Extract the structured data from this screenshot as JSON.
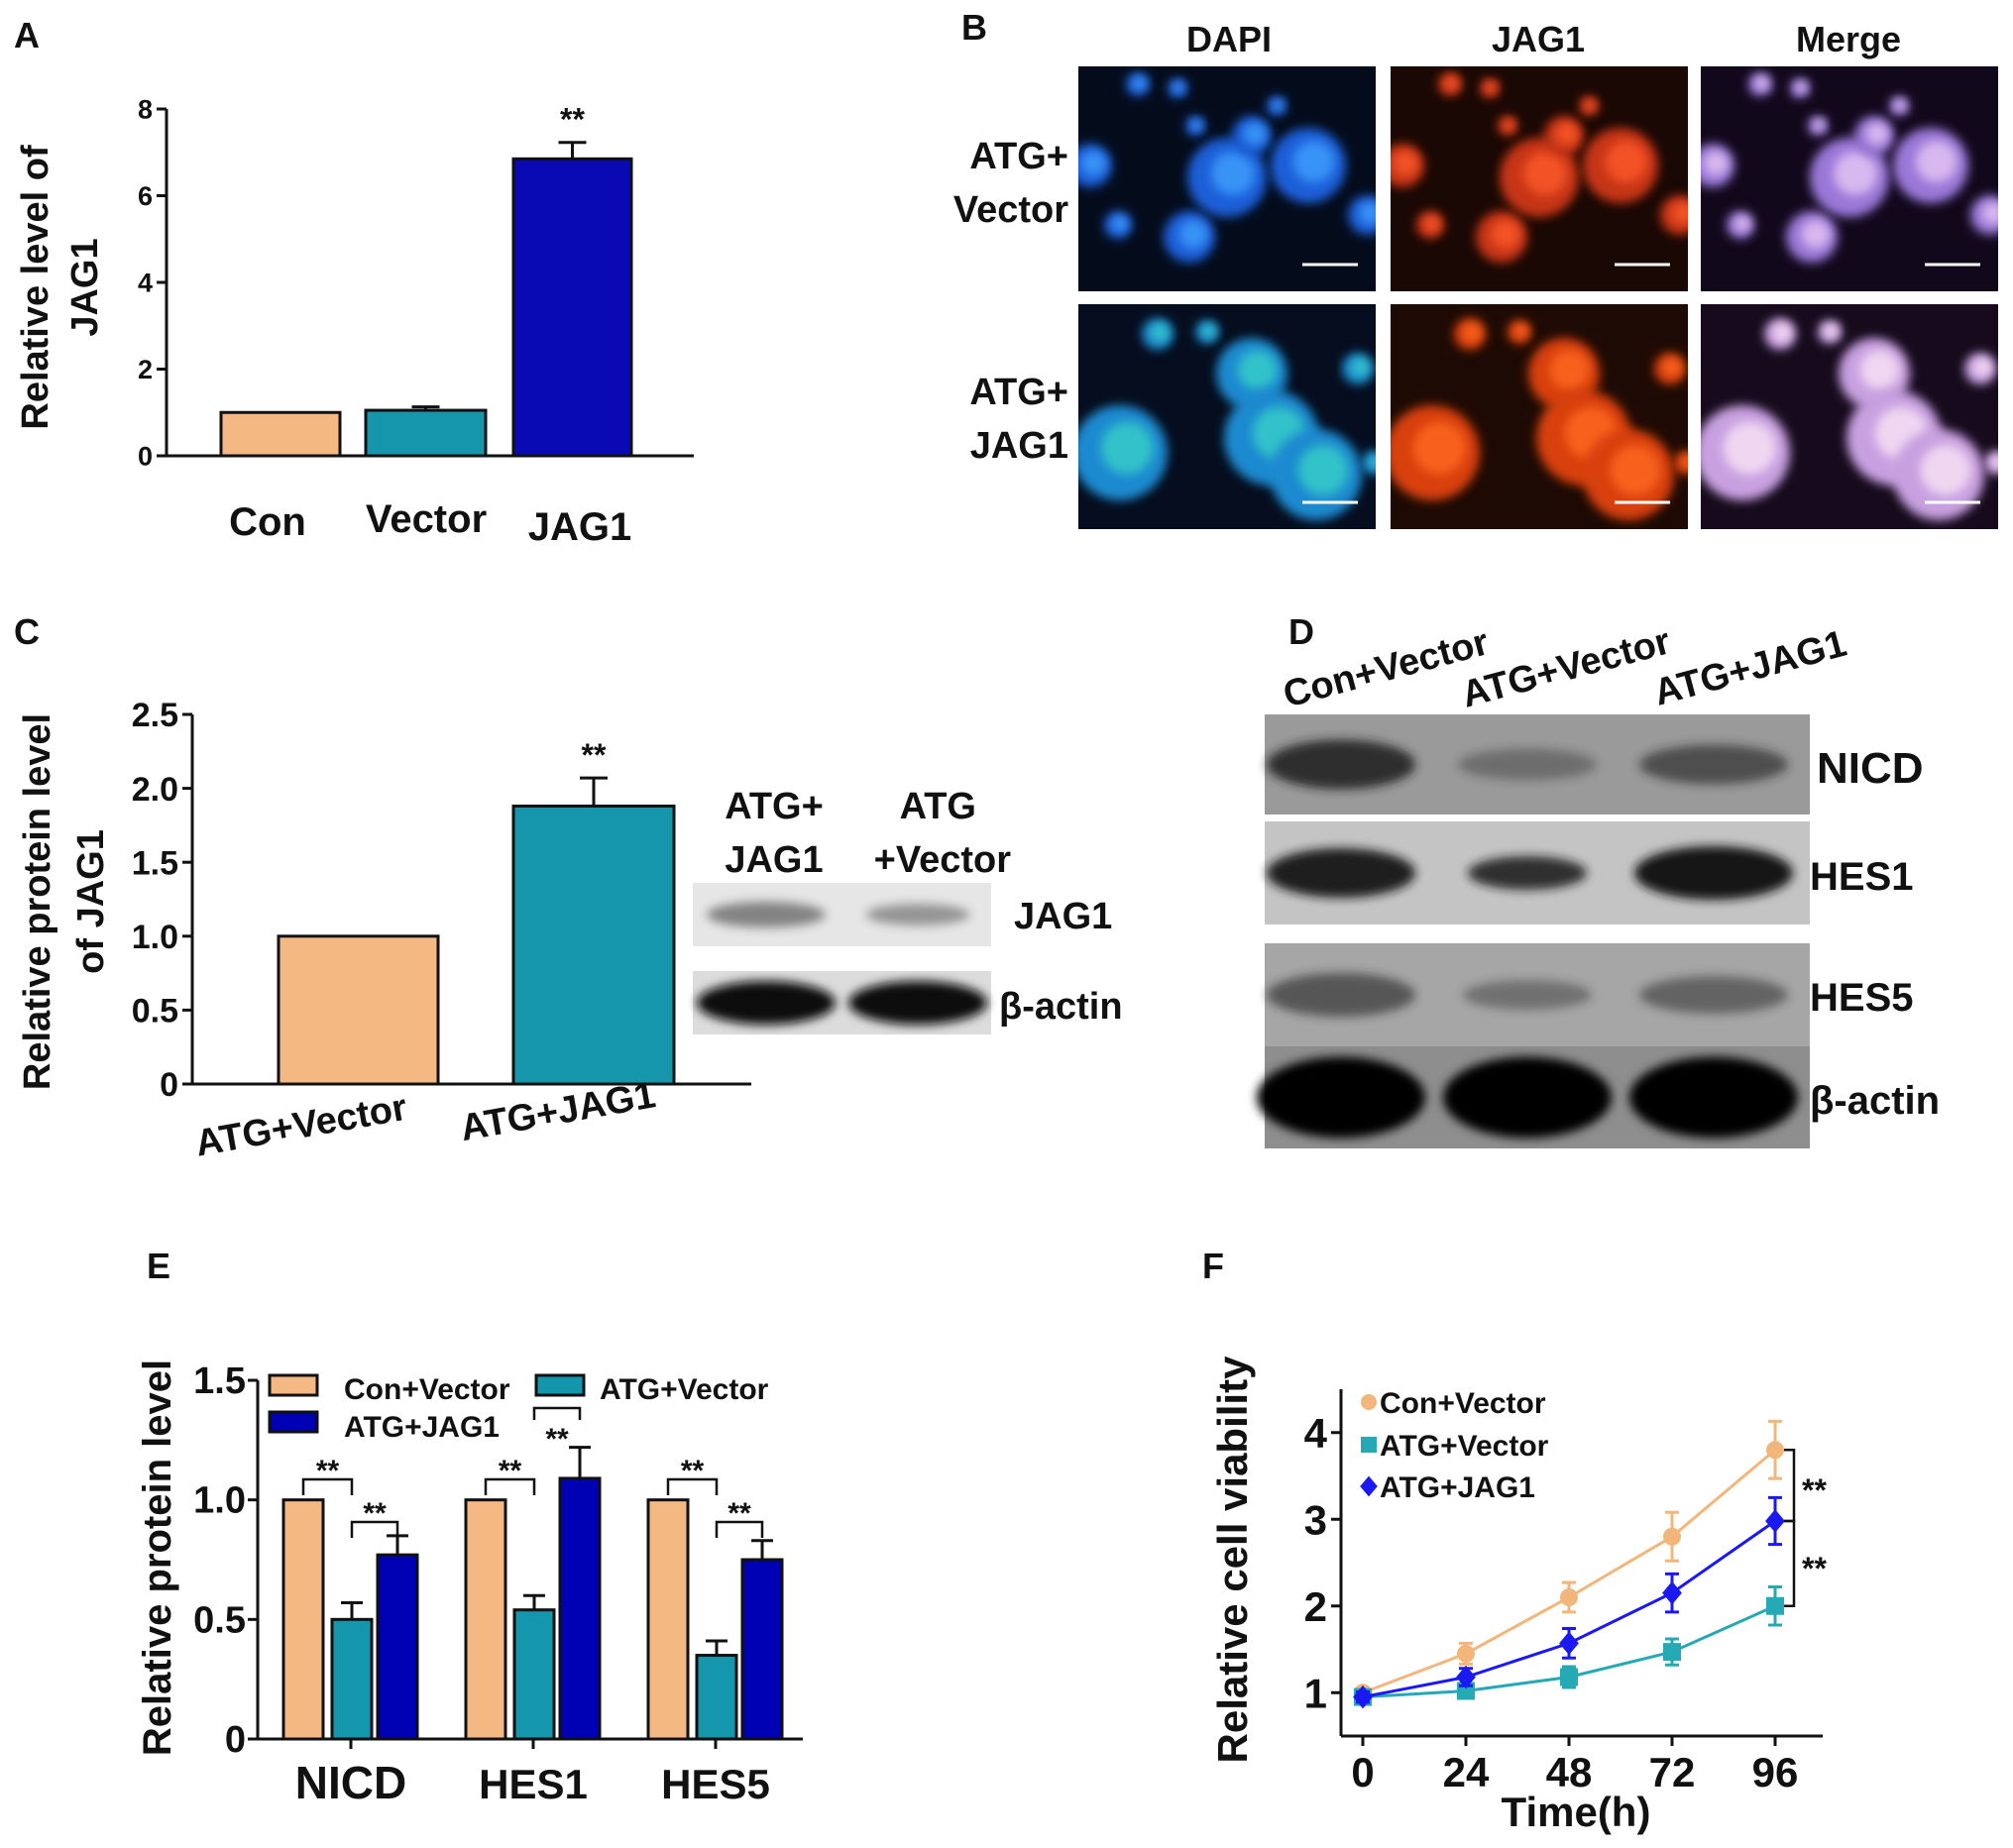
{
  "figure": {
    "panel_labels": [
      "A",
      "B",
      "C",
      "D",
      "E",
      "F"
    ],
    "panel_B": {
      "columns": [
        "DAPI",
        "JAG1",
        "Merge"
      ],
      "rows": [
        [
          "ATG+",
          "Vector"
        ],
        [
          "ATG+",
          "JAG1"
        ]
      ]
    },
    "panel_C_blot": {
      "lanes": [
        [
          "ATG+",
          "JAG1"
        ],
        [
          "ATG",
          "+Vector"
        ]
      ],
      "bands": [
        "JAG1",
        "β-actin"
      ]
    },
    "panel_D_blot": {
      "lanes": [
        "Con+Vector",
        "ATG+Vector",
        "ATG+JAG1"
      ],
      "bands": [
        "NICD",
        "HES1",
        "HES5",
        "β-actin"
      ]
    }
  },
  "chart_data": [
    {
      "panel": "A",
      "type": "bar",
      "title": "",
      "categories": [
        "Con",
        "Vector",
        "JAG1"
      ],
      "values": [
        1.0,
        1.05,
        6.85
      ],
      "errors": [
        0,
        0.08,
        0.38
      ],
      "significance": [
        "",
        "",
        "**"
      ],
      "xlabel": "",
      "ylabel_lines": [
        "Relative level of",
        "JAG1"
      ],
      "ylim": [
        0,
        8
      ],
      "yticks": [
        "0",
        "2",
        "4",
        "6",
        "8"
      ],
      "colors": [
        "#F4B983",
        "#1596AA",
        "#0A0AB4"
      ]
    },
    {
      "panel": "C",
      "type": "bar",
      "title": "",
      "categories": [
        "ATG+Vector",
        "ATG+JAG1"
      ],
      "values": [
        1.0,
        1.88
      ],
      "errors": [
        0,
        0.19
      ],
      "significance": [
        "",
        "**"
      ],
      "xlabel": "",
      "ylabel_lines": [
        "Relative protein level",
        "of JAG1"
      ],
      "ylim": [
        0,
        2.5
      ],
      "yticks": [
        "0",
        "0.5",
        "1.0",
        "1.5",
        "2.0",
        "2.5"
      ],
      "colors": [
        "#F4B983",
        "#1596AA"
      ]
    },
    {
      "panel": "E",
      "type": "bar",
      "title": "",
      "categories": [
        "NICD",
        "HES1",
        "HES5"
      ],
      "series": [
        {
          "name": "Con+Vector",
          "values": [
            1.0,
            1.0,
            1.0
          ],
          "errors": [
            0,
            0,
            0
          ],
          "color": "#F4B983"
        },
        {
          "name": "ATG+Vector",
          "values": [
            0.5,
            0.54,
            0.35
          ],
          "errors": [
            0.07,
            0.06,
            0.06
          ],
          "color": "#1497AC"
        },
        {
          "name": "ATG+JAG1",
          "values": [
            0.77,
            1.09,
            0.75
          ],
          "errors": [
            0.08,
            0.13,
            0.08
          ],
          "color": "#0000B4"
        }
      ],
      "comparisons": [
        {
          "category": 0,
          "from": 0,
          "to": 1,
          "label": "**"
        },
        {
          "category": 0,
          "from": 1,
          "to": 2,
          "label": "**"
        },
        {
          "category": 1,
          "from": 0,
          "to": 1,
          "label": "**"
        },
        {
          "category": 1,
          "from": 1,
          "to": 2,
          "label": "**"
        },
        {
          "category": 2,
          "from": 0,
          "to": 1,
          "label": "**"
        },
        {
          "category": 2,
          "from": 1,
          "to": 2,
          "label": "**"
        }
      ],
      "xlabel": "",
      "ylabel": "Relative protein level",
      "ylim": [
        0,
        1.5
      ],
      "yticks": [
        "0",
        "0.5",
        "1.0",
        "1.5"
      ],
      "legend": "top-left"
    },
    {
      "panel": "F",
      "type": "line",
      "title": "",
      "x": [
        0,
        24,
        48,
        72,
        96
      ],
      "xticks": [
        "0",
        "24",
        "48",
        "72",
        "96"
      ],
      "series": [
        {
          "name": "Con+Vector",
          "marker": "circle",
          "color": "#F2B57A",
          "values": [
            1.0,
            1.45,
            2.1,
            2.8,
            3.8
          ],
          "errors": [
            0.05,
            0.12,
            0.17,
            0.28,
            0.33
          ]
        },
        {
          "name": "ATG+Vector",
          "marker": "square",
          "color": "#25A9B5",
          "values": [
            0.95,
            1.02,
            1.18,
            1.47,
            2.0
          ],
          "errors": [
            0.05,
            0.06,
            0.12,
            0.15,
            0.22
          ]
        },
        {
          "name": "ATG+JAG1",
          "marker": "diamond",
          "color": "#1A1AF0",
          "values": [
            0.95,
            1.18,
            1.57,
            2.15,
            2.98
          ],
          "errors": [
            0.06,
            0.1,
            0.17,
            0.22,
            0.27
          ]
        }
      ],
      "comparisons": [
        {
          "from": 0,
          "to": 2,
          "label": "**"
        },
        {
          "from": 2,
          "to": 1,
          "label": "**"
        }
      ],
      "xlabel": "Time(h)",
      "ylabel": "Relative cell viability",
      "ylim": [
        0.5,
        4.5
      ],
      "yticks": [
        "1",
        "2",
        "3",
        "4"
      ],
      "legend": "top-left"
    }
  ]
}
